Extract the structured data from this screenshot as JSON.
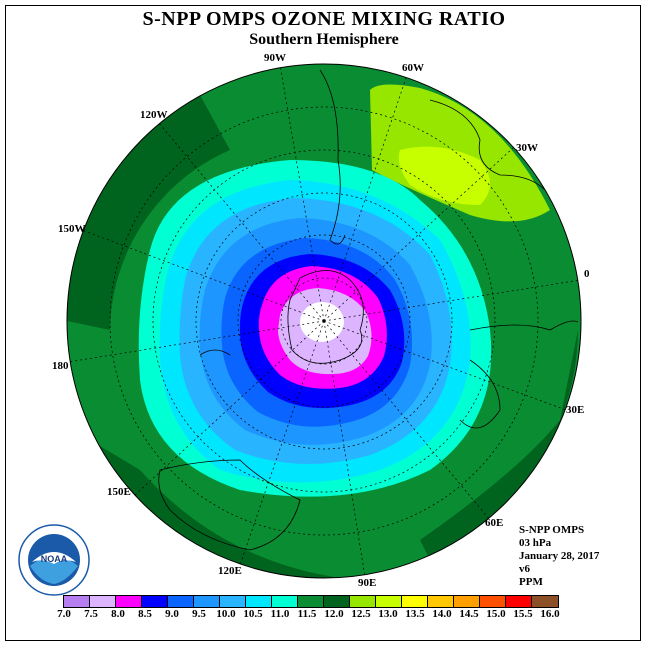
{
  "title": "S-NPP OMPS OZONE MIXING RATIO",
  "subtitle": "Southern Hemisphere",
  "longitude_labels": [
    {
      "id": "90w",
      "text": "90W"
    },
    {
      "id": "60w",
      "text": "60W"
    },
    {
      "id": "30w",
      "text": "30W"
    },
    {
      "id": "0",
      "text": "0"
    },
    {
      "id": "30e",
      "text": "30E"
    },
    {
      "id": "60e",
      "text": "60E"
    },
    {
      "id": "90e",
      "text": "90E"
    },
    {
      "id": "120e",
      "text": "120E"
    },
    {
      "id": "150e",
      "text": "150E"
    },
    {
      "id": "180",
      "text": "180"
    },
    {
      "id": "150w",
      "text": "150W"
    },
    {
      "id": "120w",
      "text": "120W"
    }
  ],
  "info": {
    "instrument": "S-NPP OMPS",
    "level": "03 hPa",
    "date": "January 28, 2017",
    "version": "v6",
    "units": "PPM"
  },
  "logo_text": "NOAA",
  "colorbar": {
    "ticks": [
      "7.0",
      "7.5",
      "8.0",
      "8.5",
      "9.0",
      "9.5",
      "10.0",
      "10.5",
      "11.0",
      "11.5",
      "12.0",
      "12.5",
      "13.0",
      "13.5",
      "14.0",
      "14.5",
      "15.0",
      "15.5",
      "16.0"
    ],
    "colors": [
      "#b77ef2",
      "#dcb4ff",
      "#ff00ff",
      "#0000ff",
      "#0a64ff",
      "#1e96ff",
      "#28b4ff",
      "#00e6ff",
      "#00ffd2",
      "#0a8c32",
      "#00641e",
      "#96e600",
      "#c8ff00",
      "#ffff00",
      "#ffc800",
      "#ffa000",
      "#ff5000",
      "#ff0000",
      "#8c5028"
    ]
  }
}
